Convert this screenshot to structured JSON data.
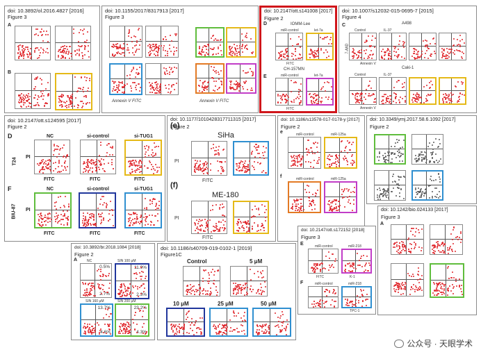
{
  "colors": {
    "highlight": "#d0161b",
    "gold": "#e5b917",
    "green": "#5fbd3c",
    "blue": "#2f8fd0",
    "navy": "#20369c",
    "orange": "#e37a24",
    "magenta": "#c13cc7",
    "dots": "#e0262b"
  },
  "panels": {
    "p1": {
      "doi": "doi: 10.3892/ol.2016.4827 [2016]",
      "fig": "Figure 3",
      "a": "A",
      "b": "B"
    },
    "p2": {
      "doi": "doi: 10.1155/2017/8317913 [2017]",
      "fig": "Figure 3",
      "axis1": "Annexin V FITC",
      "axis2": "Annexin V FITC"
    },
    "p3": {
      "doi": "doi: 10.2147/ott.s141008 [2017]",
      "fig": "Figure 2",
      "d": "D",
      "e": "E",
      "cell1": "IOMM-Lee",
      "cell2": "CH-157MN",
      "mc": "miR-control",
      "m": "let-7a",
      "fitc": "FITC"
    },
    "p4": {
      "doi": "doi: 10.1007/s12032-015-0695-7 [2015]",
      "fig": "Figure 4",
      "c": "C",
      "cell1": "A498",
      "cell2": "Caki-1",
      "ctrl": "Control",
      "il": "IL-37",
      "an": "Annexin V",
      "pi": "7-AAD"
    },
    "p5": {
      "doi": "doi: 10.2147/ott.s124595 [2017]",
      "fig": "Figure 2",
      "d": "D",
      "f": "F",
      "nc": "NC",
      "sic": "si-control",
      "sit": "si-TUG1",
      "t24": "T24",
      "biu": "BIU-87",
      "pi": "PI",
      "fitc": "FITC"
    },
    "p6": {
      "doi": "doi: 10.1177/1010428317711315 [2017]",
      "fig": "Figure 2",
      "e": "(e)",
      "f": "(f)",
      "siha": "SiHa",
      "me": "ME-180",
      "pi": "PI",
      "fitc": "FITC"
    },
    "p7": {
      "doi": "doi: 10.1186/s13578-017-0178-y [2017]",
      "fig": "Figure 2",
      "e": "e",
      "f": "f",
      "mc": "miR-control",
      "m": "miR-125a"
    },
    "p8": {
      "doi": "doi: 10.3349/ymj.2017.58.6.1092 [2017]",
      "fig": "Figure 2"
    },
    "p9": {
      "doi": "doi: 10.1242/bio.024133 [2017]",
      "fig": "Figure 3",
      "a": "A"
    },
    "p10": {
      "doi": "doi: 10.3892/br.2018.1084 [2018]",
      "fig": "Figure 2",
      "a": "A",
      "nc": "NC",
      "s1": "SIN 100 μM",
      "s2": "SIN 160 μM",
      "s3": "SIN 200 μM",
      "v1": "0.5%",
      "v2": "11.9%",
      "v3": "2.7%",
      "v4": "2.3%",
      "v5": "13.7%",
      "v6": "23.2%",
      "v7": "4.6%",
      "v8": "4.3%"
    },
    "p11": {
      "doi": "doi: 10.1186/s40709-019-0102-1 [2019]",
      "fig": "Figure1C",
      "ctrl": "Control",
      "c5": "5 μM",
      "c10": "10 μM",
      "c25": "25 μM",
      "c50": "50 μM"
    },
    "p12": {
      "doi": "doi: 10.2147/ott.s172152 [2018]",
      "fig": "Figure 3",
      "e": "E",
      "f": "F",
      "mc": "miR-control",
      "m": "miR-218",
      "k1": "K-1",
      "tpc": "TPC-1",
      "fitc": "FITC"
    }
  },
  "watermark": {
    "text": "公众号 · 天眼学术",
    "icon": "wechat-icon"
  }
}
